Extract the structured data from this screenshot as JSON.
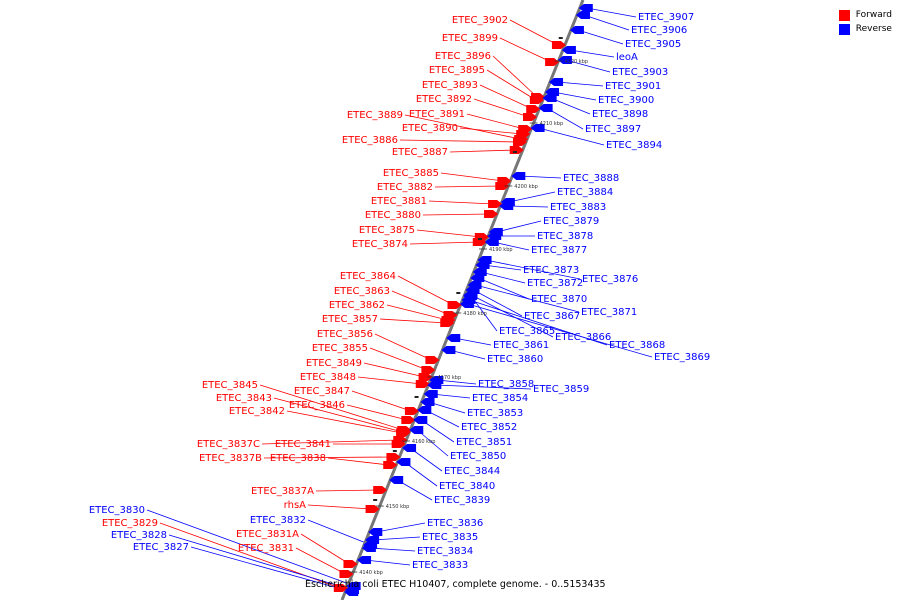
{
  "legend": {
    "forward_label": "Forward",
    "reverse_label": "Reverse",
    "forward_color": "#ff0000",
    "reverse_color": "#0000ff"
  },
  "caption": "Escherichia coli ETEC H10407, complete genome. - 0..5153435",
  "ticks": [
    "4140 kbp",
    "4150 kbp",
    "4160 kbp",
    "4170 kbp",
    "4180 kbp",
    "4190 kbp",
    "4200 kbp",
    "4210 kbp",
    "4220 kbp"
  ],
  "forward_genes": [
    "ETEC_3902",
    "ETEC_3899",
    "ETEC_3896",
    "ETEC_3895",
    "ETEC_3893",
    "ETEC_3892",
    "ETEC_3891",
    "ETEC_3889",
    "ETEC_3890",
    "ETEC_3886",
    "ETEC_3887",
    "ETEC_3885",
    "ETEC_3882",
    "ETEC_3881",
    "ETEC_3880",
    "ETEC_3875",
    "ETEC_3874",
    "ETEC_3864",
    "ETEC_3863",
    "ETEC_3862",
    "ETEC_3857",
    "ETEC_3856",
    "ETEC_3855",
    "ETEC_3849",
    "ETEC_3848",
    "ETEC_3845",
    "ETEC_3847",
    "ETEC_3843",
    "ETEC_3846",
    "ETEC_3842",
    "ETEC_3837C",
    "ETEC_3841",
    "ETEC_3837B",
    "ETEC_3838",
    "ETEC_3837A",
    "rhsA",
    "ETEC_3831A",
    "ETEC_3831",
    "ETEC_3829"
  ],
  "reverse_genes": [
    "ETEC_3907",
    "ETEC_3906",
    "ETEC_3905",
    "leoA",
    "ETEC_3903",
    "ETEC_3901",
    "ETEC_3900",
    "ETEC_3898",
    "ETEC_3897",
    "ETEC_3894",
    "ETEC_3888",
    "ETEC_3884",
    "ETEC_3883",
    "ETEC_3879",
    "ETEC_3878",
    "ETEC_3877",
    "ETEC_3876",
    "ETEC_3873",
    "ETEC_3872",
    "ETEC_3870",
    "ETEC_3871",
    "ETEC_3867",
    "ETEC_3865",
    "ETEC_3866",
    "ETEC_3861",
    "ETEC_3868",
    "ETEC_3860",
    "ETEC_3869",
    "ETEC_3858",
    "ETEC_3859",
    "ETEC_3854",
    "ETEC_3853",
    "ETEC_3852",
    "ETEC_3851",
    "ETEC_3850",
    "ETEC_3844",
    "ETEC_3840",
    "ETEC_3839",
    "ETEC_3836",
    "ETEC_3835",
    "ETEC_3834",
    "ETEC_3833",
    "ETEC_3832",
    "ETEC_3830",
    "ETEC_3828",
    "ETEC_3827"
  ]
}
